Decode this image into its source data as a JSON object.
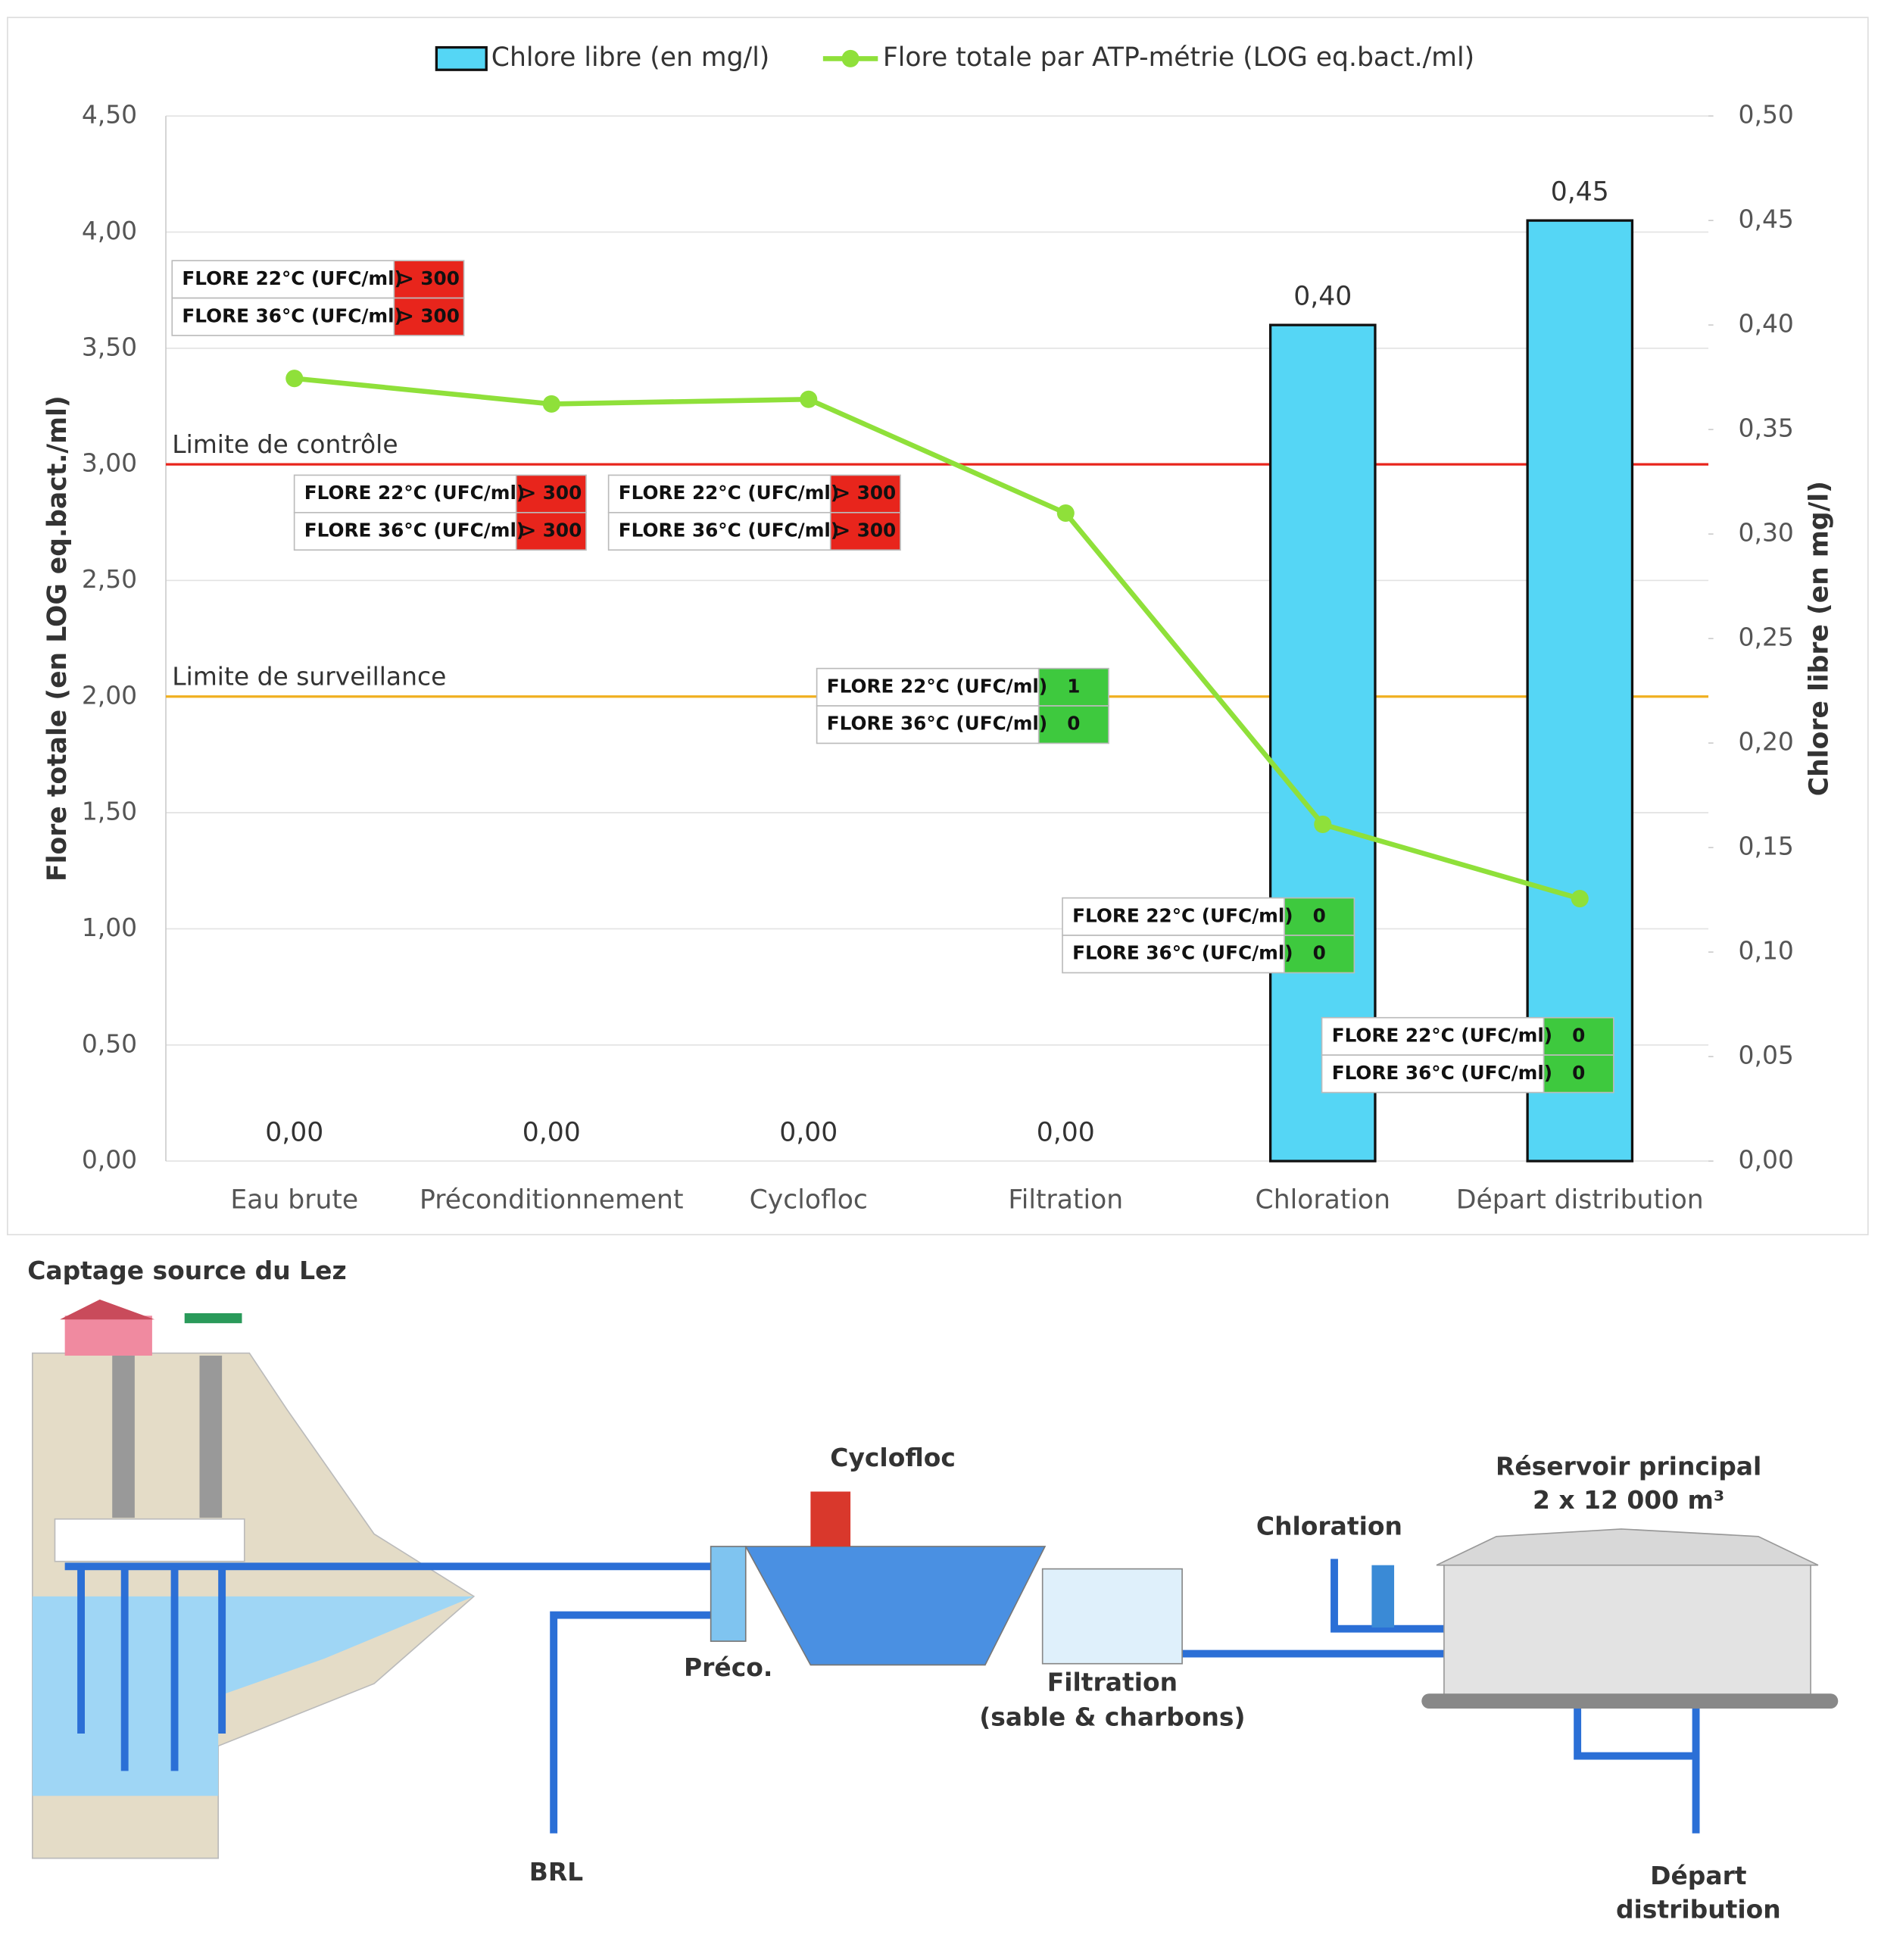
{
  "chart_data": {
    "type": "combo",
    "categories": [
      "Eau brute",
      "Préconditionnement",
      "Cyclofloc",
      "Filtration",
      "Chloration",
      "Départ distribution"
    ],
    "series": [
      {
        "name": "Chlore libre (en mg/l)",
        "type": "bar",
        "axis": "y2",
        "color": "#55d6f5",
        "values": [
          0,
          0,
          0,
          0,
          0.4,
          0.45
        ],
        "value_labels": [
          "0,00",
          "0,00",
          "0,00",
          "0,00",
          "0,40",
          "0,45"
        ]
      },
      {
        "name": "Flore totale par ATP-métrie (LOG eq.bact./ml)",
        "type": "line",
        "axis": "y",
        "color": "#8fe03a",
        "values": [
          3.37,
          3.26,
          3.28,
          2.79,
          1.45,
          1.13
        ]
      }
    ],
    "ylabel": "Flore totale (en LOG eq.bact./ml)",
    "y2label": "Chlore libre (en mg/l)",
    "ylim": [
      0,
      4.5
    ],
    "yticks": [
      {
        "value": 0,
        "label": "0,00"
      },
      {
        "value": 0.5,
        "label": "0,50"
      },
      {
        "value": 1,
        "label": "1,00"
      },
      {
        "value": 1.5,
        "label": "1,50"
      },
      {
        "value": 2,
        "label": "2,00"
      },
      {
        "value": 2.5,
        "label": "2,50"
      },
      {
        "value": 3,
        "label": "3,00"
      },
      {
        "value": 3.5,
        "label": "3,50"
      },
      {
        "value": 4,
        "label": "4,00"
      },
      {
        "value": 4.5,
        "label": "4,50"
      }
    ],
    "y2lim": [
      0,
      0.5
    ],
    "y2ticks": [
      {
        "value": 0,
        "label": "0,00"
      },
      {
        "value": 0.05,
        "label": "0,05"
      },
      {
        "value": 0.1,
        "label": "0,10"
      },
      {
        "value": 0.15,
        "label": "0,15"
      },
      {
        "value": 0.2,
        "label": "0,20"
      },
      {
        "value": 0.25,
        "label": "0,25"
      },
      {
        "value": 0.3,
        "label": "0,30"
      },
      {
        "value": 0.35,
        "label": "0,35"
      },
      {
        "value": 0.4,
        "label": "0,40"
      },
      {
        "value": 0.45,
        "label": "0,45"
      },
      {
        "value": 0.5,
        "label": "0,50"
      }
    ],
    "grid": true,
    "legend": "top",
    "reference_lines": [
      {
        "label": "Limite de contrôle",
        "value": 3,
        "color": "#e8251c"
      },
      {
        "label": "Limite de surveillance",
        "value": 2,
        "color": "#f0b020"
      }
    ],
    "annotations": [
      {
        "rows": [
          {
            "label": "FLORE 22°C (UFC/ml)",
            "value": "> 300"
          },
          {
            "label": "FLORE 36°C (UFC/ml)",
            "value": "> 300"
          }
        ],
        "color": "#e8251c"
      },
      {
        "rows": [
          {
            "label": "FLORE 22°C (UFC/ml)",
            "value": "> 300"
          },
          {
            "label": "FLORE 36°C (UFC/ml)",
            "value": "> 300"
          }
        ],
        "color": "#e8251c"
      },
      {
        "rows": [
          {
            "label": "FLORE 22°C (UFC/ml)",
            "value": "> 300"
          },
          {
            "label": "FLORE 36°C (UFC/ml)",
            "value": "> 300"
          }
        ],
        "color": "#e8251c"
      },
      {
        "rows": [
          {
            "label": "FLORE 22°C (UFC/ml)",
            "value": 1
          },
          {
            "label": "FLORE 36°C (UFC/ml)",
            "value": 0
          }
        ],
        "color": "#3ec93e"
      },
      {
        "rows": [
          {
            "label": "FLORE 22°C (UFC/ml)",
            "value": 0
          },
          {
            "label": "FLORE 36°C (UFC/ml)",
            "value": 0
          }
        ],
        "color": "#3ec93e"
      },
      {
        "rows": [
          {
            "label": "FLORE 22°C (UFC/ml)",
            "value": 0
          },
          {
            "label": "FLORE 36°C (UFC/ml)",
            "value": 0
          }
        ],
        "color": "#3ec93e"
      }
    ]
  },
  "diagram": {
    "labels": [
      "Captage source du Lez",
      "Cyclofloc",
      "Préco.",
      "Filtration",
      "(sable & charbons)",
      "Chloration",
      "Réservoir principal",
      "2 x 12 000 m³",
      "BRL",
      "Départ",
      "distribution"
    ]
  }
}
